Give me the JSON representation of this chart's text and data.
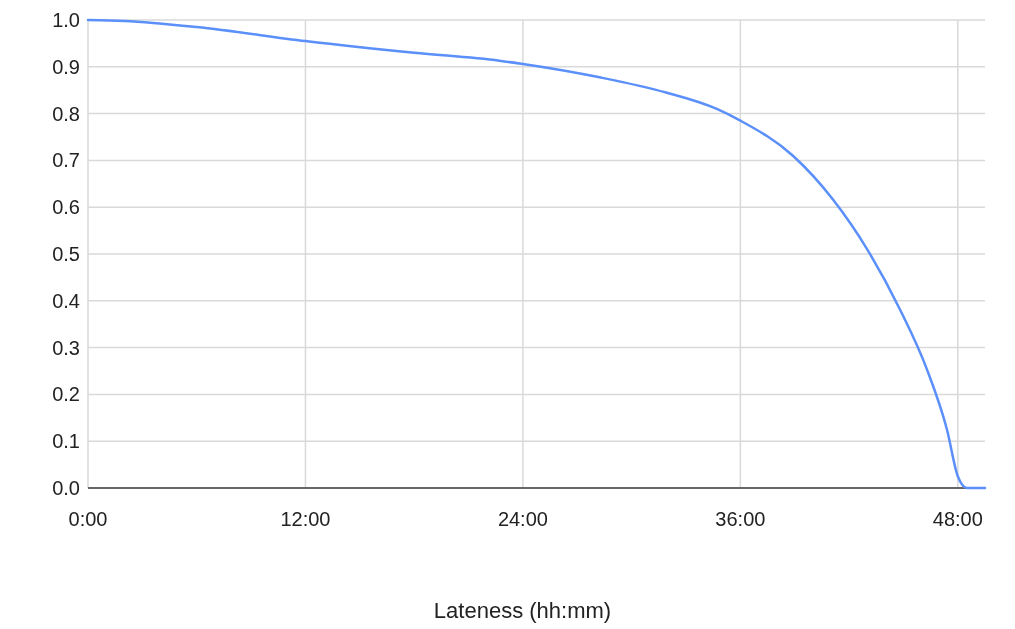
{
  "chart_data": {
    "type": "line",
    "xlabel": "Lateness (hh:mm)",
    "x": [
      0,
      2,
      6,
      12,
      18,
      22.7,
      24,
      28.3,
      31.9,
      34.7,
      36,
      38.9,
      41.1,
      43,
      44.8,
      46.3,
      47.4,
      48,
      48.5,
      49.5
    ],
    "series": [
      {
        "color": "#5b8ff9",
        "values": [
          1.0,
          0.998,
          0.985,
          0.955,
          0.93,
          0.913,
          0.906,
          0.877,
          0.845,
          0.81,
          0.785,
          0.71,
          0.617,
          0.51,
          0.382,
          0.253,
          0.125,
          0.025,
          0,
          0
        ]
      }
    ],
    "xlim": [
      0,
      49.5
    ],
    "xticks": [
      {
        "value": 0,
        "label": "0:00"
      },
      {
        "value": 12,
        "label": "12:00"
      },
      {
        "value": 24,
        "label": "24:00"
      },
      {
        "value": 36,
        "label": "36:00"
      },
      {
        "value": 48,
        "label": "48:00"
      }
    ],
    "ylim": [
      0,
      1
    ],
    "yticks": [
      {
        "value": 0,
        "label": "0.0"
      },
      {
        "value": 0.1,
        "label": "0.1"
      },
      {
        "value": 0.2,
        "label": "0.2"
      },
      {
        "value": 0.3,
        "label": "0.3"
      },
      {
        "value": 0.4,
        "label": "0.4"
      },
      {
        "value": 0.5,
        "label": "0.5"
      },
      {
        "value": 0.6,
        "label": "0.6"
      },
      {
        "value": 0.7,
        "label": "0.7"
      },
      {
        "value": 0.8,
        "label": "0.8"
      },
      {
        "value": 0.9,
        "label": "0.9"
      },
      {
        "value": 1.0,
        "label": "1.0"
      }
    ],
    "grid": true
  }
}
